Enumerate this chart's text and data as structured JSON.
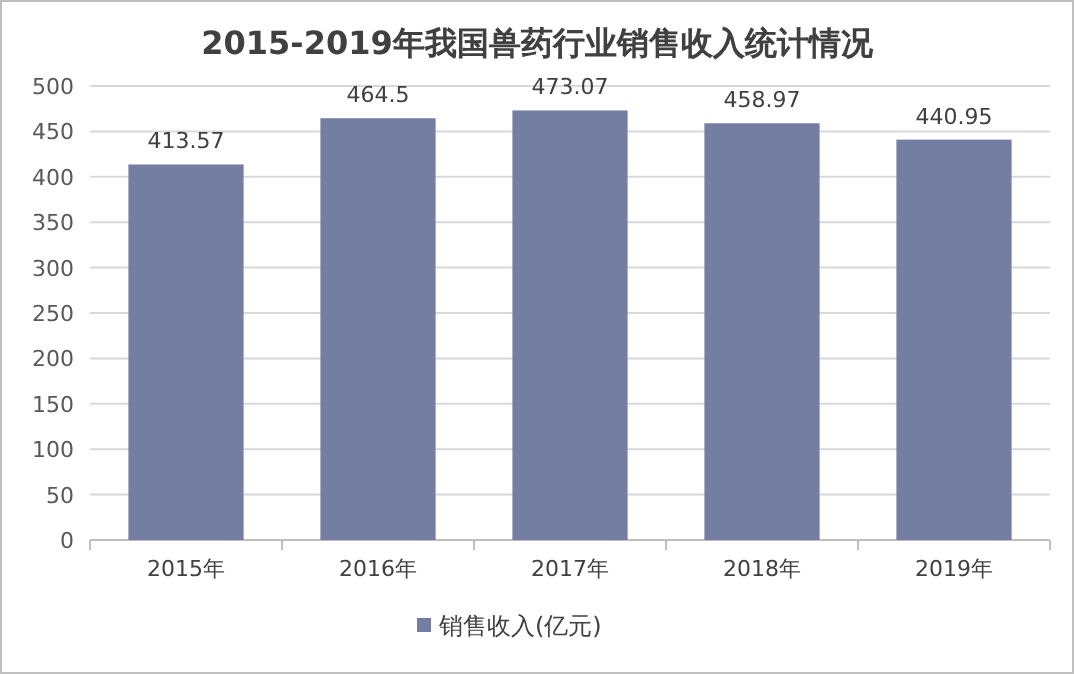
{
  "chart_data": {
    "type": "bar",
    "title": "2015-2019年我国兽药行业销售收入统计情况",
    "categories": [
      "2015年",
      "2016年",
      "2017年",
      "2018年",
      "2019年"
    ],
    "series": [
      {
        "name": "销售收入(亿元)",
        "color": "#747ea2",
        "values": [
          413.57,
          464.5,
          473.07,
          458.97,
          440.95
        ]
      }
    ],
    "ylim": [
      0,
      500
    ],
    "yticks": [
      0,
      50,
      100,
      150,
      200,
      250,
      300,
      350,
      400,
      450,
      500
    ],
    "grid": "y",
    "legend": "bottom",
    "data_labels": true
  }
}
